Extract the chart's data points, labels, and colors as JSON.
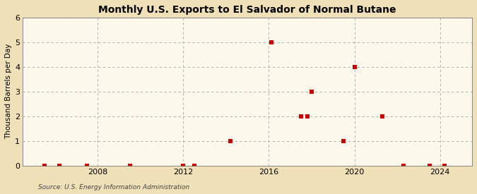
{
  "title": "Monthly U.S. Exports to El Salvador of Normal Butane",
  "ylabel": "Thousand Barrels per Day",
  "source": "Source: U.S. Energy Information Administration",
  "background_color": "#f0e0b8",
  "plot_background_color": "#fdf8ec",
  "grid_color": "#999999",
  "marker_color": "#cc0000",
  "xlim": [
    2004.5,
    2025.5
  ],
  "ylim": [
    0,
    6
  ],
  "xticks": [
    2008,
    2012,
    2016,
    2020,
    2024
  ],
  "yticks": [
    0,
    1,
    2,
    3,
    4,
    5,
    6
  ],
  "data_points": [
    [
      2005.5,
      0
    ],
    [
      2006.2,
      0
    ],
    [
      2007.5,
      0
    ],
    [
      2009.5,
      0
    ],
    [
      2012.0,
      0
    ],
    [
      2012.5,
      0
    ],
    [
      2014.2,
      1
    ],
    [
      2016.1,
      5
    ],
    [
      2017.5,
      2
    ],
    [
      2017.8,
      2
    ],
    [
      2018.0,
      3
    ],
    [
      2019.5,
      1
    ],
    [
      2020.0,
      4
    ],
    [
      2021.3,
      2
    ],
    [
      2022.3,
      0
    ],
    [
      2023.5,
      0
    ],
    [
      2024.2,
      0
    ]
  ]
}
